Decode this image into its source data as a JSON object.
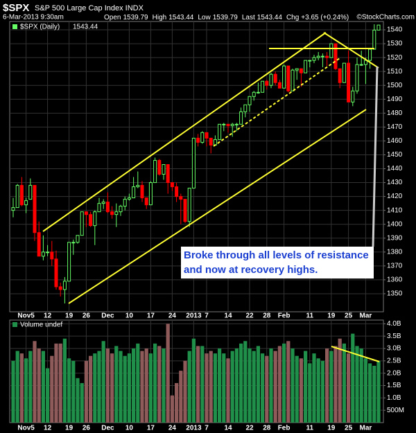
{
  "chart_data": {
    "type": "candlestick",
    "symbol": "$SPX",
    "title": "S&P 500 Large Cap Index INDX",
    "date": "6-Mar-2013 9:30am",
    "quote": [
      {
        "label": "Open",
        "value": 1539.79
      },
      {
        "label": "High",
        "value": 1543.44
      },
      {
        "label": "Low",
        "value": 1539.79
      },
      {
        "label": "Last",
        "value": 1543.44
      },
      {
        "label": "Chg",
        "value": "+3.65 (+0.24%)"
      }
    ],
    "credit": "©StockCharts.com",
    "legend_label": "$SPX (Daily)",
    "legend_value": 1543.44,
    "annotation": "Broke through all levels of resistance and now at recovery highs.",
    "grid": true,
    "up_color": "#66ff66",
    "down_color": "#ff0000",
    "categories": [
      null,
      null,
      null,
      "Nov5",
      null,
      null,
      null,
      null,
      "12",
      null,
      null,
      null,
      null,
      "19",
      null,
      null,
      null,
      "26",
      null,
      null,
      null,
      null,
      "Dec",
      null,
      null,
      null,
      null,
      "10",
      null,
      null,
      null,
      null,
      "17",
      null,
      null,
      null,
      null,
      "24",
      null,
      null,
      null,
      null,
      "2013",
      null,
      null,
      "7",
      null,
      null,
      null,
      null,
      "14",
      null,
      null,
      null,
      null,
      "22",
      null,
      null,
      null,
      "28",
      null,
      null,
      null,
      "Feb",
      null,
      null,
      null,
      null,
      null,
      "11",
      null,
      null,
      null,
      null,
      "19",
      null,
      null,
      null,
      "25",
      null,
      null,
      null,
      "Mar",
      null,
      null,
      null
    ],
    "open": [
      1410,
      1412,
      1428,
      1414,
      1418,
      1428,
      1394,
      1377,
      1380,
      1380,
      1375,
      1355,
      1353,
      1359,
      1387,
      1387,
      1392,
      1409,
      1407,
      1399,
      1409,
      1415,
      1416,
      1409,
      1407,
      1409,
      1413,
      1418,
      1419,
      1427,
      1428,
      1419,
      1414,
      1430,
      1446,
      1436,
      1443,
      1430,
      1427,
      1420,
      1418,
      1402,
      1426,
      1462,
      1459,
      1466,
      1462,
      1457,
      1461,
      1472,
      1472,
      1471,
      1472,
      1472,
      1481,
      1486,
      1492,
      1495,
      1495,
      1503,
      1500,
      1508,
      1502,
      1498,
      1514,
      1496,
      1511,
      1512,
      1509,
      1518,
      1518,
      1520,
      1521,
      1521,
      1520,
      1530,
      1512,
      1502,
      1516,
      1488,
      1496,
      1515,
      1515,
      1518,
      1526,
      1539.79
    ],
    "high": [
      1419,
      1429,
      1434,
      1419,
      1433,
      1428,
      1402,
      1392,
      1385,
      1388,
      1381,
      1358,
      1362,
      1387,
      1389,
      1392,
      1409,
      1409,
      1409,
      1410,
      1419,
      1418,
      1423,
      1413,
      1415,
      1414,
      1420,
      1422,
      1434,
      1438,
      1431,
      1419,
      1431,
      1448,
      1447,
      1443,
      1443,
      1430,
      1430,
      1422,
      1418,
      1426,
      1462,
      1465,
      1467,
      1466,
      1462,
      1464,
      1472,
      1473,
      1472,
      1473,
      1473,
      1484,
      1486,
      1492,
      1496,
      1502,
      1503,
      1504,
      1509,
      1510,
      1504,
      1515,
      1514,
      1512,
      1512,
      1512,
      1518,
      1518,
      1522,
      1524,
      1523,
      1524,
      1530,
      1530,
      1512,
      1516,
      1525,
      1499,
      1520,
      1525,
      1520,
      1526,
      1544,
      1543.44
    ],
    "low": [
      1405,
      1412,
      1413,
      1408,
      1418,
      1388,
      1377,
      1374,
      1377,
      1370,
      1353,
      1348,
      1343,
      1359,
      1378,
      1386,
      1392,
      1398,
      1398,
      1385,
      1409,
      1411,
      1408,
      1404,
      1398,
      1406,
      1410,
      1417,
      1419,
      1426,
      1416,
      1411,
      1414,
      1430,
      1435,
      1432,
      1422,
      1424,
      1416,
      1400,
      1401,
      1398,
      1426,
      1456,
      1458,
      1456,
      1451,
      1457,
      1461,
      1467,
      1466,
      1463,
      1467,
      1472,
      1477,
      1481,
      1489,
      1494,
      1495,
      1497,
      1498,
      1500,
      1498,
      1498,
      1495,
      1496,
      1504,
      1499,
      1509,
      1513,
      1516,
      1518,
      1513,
      1514,
      1520,
      1511,
      1498,
      1502,
      1488,
      1485,
      1494,
      1514,
      1501,
      1512,
      1526,
      1539.79
    ],
    "close": [
      1412,
      1428,
      1414,
      1417,
      1428,
      1394,
      1377,
      1380,
      1380,
      1375,
      1355,
      1353,
      1359,
      1387,
      1387,
      1392,
      1409,
      1407,
      1399,
      1409,
      1415,
      1416,
      1409,
      1407,
      1409,
      1413,
      1418,
      1419,
      1427,
      1428,
      1419,
      1414,
      1430,
      1446,
      1436,
      1443,
      1430,
      1427,
      1420,
      1418,
      1402,
      1426,
      1462,
      1459,
      1466,
      1462,
      1457,
      1461,
      1472,
      1472,
      1471,
      1472,
      1472,
      1481,
      1486,
      1492,
      1495,
      1495,
      1503,
      1500,
      1508,
      1502,
      1498,
      1514,
      1496,
      1511,
      1512,
      1509,
      1518,
      1518,
      1520,
      1521,
      1521,
      1520,
      1530,
      1512,
      1502,
      1516,
      1488,
      1496,
      1515,
      1515,
      1518,
      1526,
      1539.79,
      1543.44
    ],
    "ylim": [
      1337,
      1546
    ],
    "yticks": [
      1350,
      1360,
      1370,
      1380,
      1390,
      1400,
      1410,
      1420,
      1430,
      1440,
      1450,
      1460,
      1470,
      1480,
      1490,
      1500,
      1510,
      1520,
      1530,
      1540
    ],
    "volume": {
      "name": "Volume undef",
      "up_color": "#1f8f4a",
      "down_color": "#8f5a5a",
      "values": [
        2.5,
        2.9,
        2.8,
        2.6,
        2.9,
        3.3,
        3.0,
        2.9,
        2.2,
        2.7,
        3.2,
        3.2,
        3.4,
        2.6,
        2.5,
        1.8,
        1.6,
        2.5,
        2.7,
        2.8,
        2.9,
        3.3,
        3.0,
        2.8,
        3.1,
        2.9,
        2.7,
        2.8,
        3.0,
        3.2,
        2.9,
        3.0,
        2.8,
        3.2,
        3.1,
        3.0,
        4.0,
        1.1,
        1.6,
        2.1,
        2.5,
        2.9,
        3.4,
        3.1,
        3.1,
        2.8,
        2.9,
        2.8,
        3.0,
        2.8,
        2.6,
        2.9,
        3.0,
        3.2,
        3.3,
        3.0,
        2.9,
        3.1,
        2.8,
        2.7,
        3.0,
        2.9,
        3.1,
        3.2,
        3.3,
        3.0,
        2.7,
        2.6,
        2.9,
        2.4,
        2.8,
        2.6,
        2.5,
        3.0,
        2.9,
        3.1,
        3.4,
        3.2,
        2.8,
        3.6,
        3.1,
        3.0,
        2.6,
        2.4,
        2.3,
        2.5
      ],
      "ylim": [
        0,
        4.15
      ],
      "yticks": [
        {
          "value": 0.5,
          "label": "500M"
        },
        {
          "value": 1.0,
          "label": "1.0B"
        },
        {
          "value": 1.5,
          "label": "1.5B"
        },
        {
          "value": 2.0,
          "label": "2.0B"
        },
        {
          "value": 2.5,
          "label": "2.5B"
        },
        {
          "value": 3.0,
          "label": "3.0B"
        },
        {
          "value": 3.5,
          "label": "3.5B"
        },
        {
          "value": 4.0,
          "label": "4.0B"
        }
      ]
    }
  }
}
